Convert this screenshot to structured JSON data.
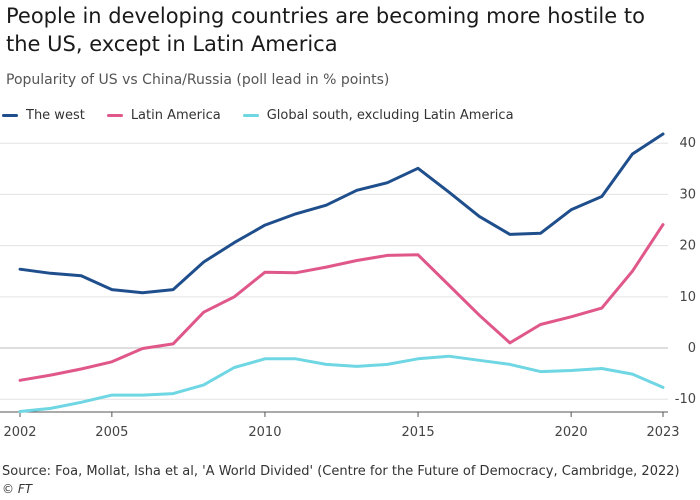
{
  "header": {
    "title": "People in developing countries are becoming more hostile to the US, except in Latin America",
    "subtitle": "Popularity of US vs China/Russia (poll lead in % points)"
  },
  "footer": {
    "source": "Source: Foa, Mollat, Isha et al, 'A World Divided' (Centre for the Future of Democracy, Cambridge, 2022)",
    "credit": "© FT"
  },
  "chart_data": {
    "type": "line",
    "title": "People in developing countries are becoming more hostile to the US, except in Latin America",
    "subtitle": "Popularity of US vs China/Russia (poll lead in % points)",
    "xlabel": "",
    "ylabel": "",
    "x": [
      2002,
      2003,
      2004,
      2005,
      2006,
      2007,
      2008,
      2009,
      2010,
      2011,
      2012,
      2013,
      2014,
      2015,
      2016,
      2017,
      2018,
      2019,
      2020,
      2021,
      2022,
      2023
    ],
    "xticks": [
      "2002",
      "2005",
      "2010",
      "2015",
      "2020",
      "2023"
    ],
    "yticks": [
      -10,
      0,
      10,
      20,
      30,
      40
    ],
    "ylim": [
      -12.5,
      42
    ],
    "xlim": [
      2002,
      2023
    ],
    "grid": true,
    "legend_position": "top-left",
    "series": [
      {
        "name": "The west",
        "color": "#1f4e8c",
        "values": [
          15.4,
          14.6,
          14.1,
          11.4,
          10.8,
          11.4,
          16.8,
          20.6,
          24,
          26.2,
          27.9,
          30.8,
          32.3,
          35.1,
          30.5,
          25.7,
          22.2,
          22.4,
          27,
          29.6,
          37.9,
          41.8
        ]
      },
      {
        "name": "Latin America",
        "color": "#e0578a",
        "values": [
          -6.3,
          -5.3,
          -4.1,
          -2.7,
          -0.1,
          0.8,
          7,
          10,
          14.8,
          14.7,
          15.8,
          17.1,
          18.1,
          18.2,
          12.3,
          6.4,
          1,
          4.6,
          6.1,
          7.8,
          15,
          24.1
        ]
      },
      {
        "name": "Global south, excluding Latin America",
        "color": "#6fd6e3",
        "values": [
          -12.4,
          -11.8,
          -10.6,
          -9.2,
          -9.2,
          -8.9,
          -7.2,
          -3.8,
          -2.1,
          -2.1,
          -3.2,
          -3.6,
          -3.2,
          -2.1,
          -1.6,
          -2.4,
          -3.2,
          -4.6,
          -4.4,
          -4,
          -5.1,
          -7.7
        ]
      }
    ]
  }
}
